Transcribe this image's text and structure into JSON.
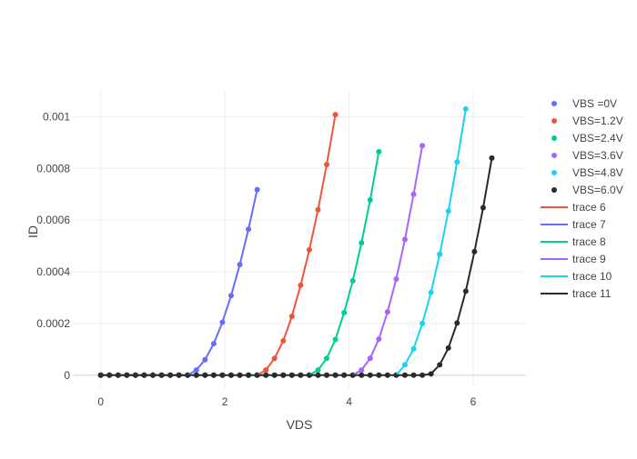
{
  "chart_data": {
    "type": "line",
    "xlabel": "VDS",
    "ylabel": "ID",
    "xlim": [
      -0.45,
      6.85
    ],
    "ylim": [
      -5e-05,
      0.0011
    ],
    "x_ticks": [
      {
        "value": 0,
        "label": "0"
      },
      {
        "value": 2,
        "label": "2"
      },
      {
        "value": 4,
        "label": "4"
      },
      {
        "value": 6,
        "label": "6"
      }
    ],
    "y_ticks": [
      {
        "value": 0,
        "label": "0"
      },
      {
        "value": 0.0002,
        "label": "0.0002"
      },
      {
        "value": 0.0004,
        "label": "0.0004"
      },
      {
        "value": 0.0006,
        "label": "0.0006"
      },
      {
        "value": 0.0008,
        "label": "0.0008"
      },
      {
        "value": 0.001,
        "label": "0.001"
      }
    ],
    "grid": true,
    "legend_position": "right",
    "series": [
      {
        "name": "VBS =0V",
        "mode": "markers",
        "color": "#636efa",
        "x": [
          0,
          0.14,
          0.28,
          0.42,
          0.56,
          0.7,
          0.84,
          0.98,
          1.12,
          1.26,
          1.4,
          1.54,
          1.68,
          1.82,
          1.96,
          2.1,
          2.24,
          2.38,
          2.52
        ],
        "y": [
          0,
          0,
          0,
          0,
          0,
          0,
          0,
          0,
          0,
          0,
          0,
          2e-05,
          6e-05,
          0.000122,
          0.000205,
          0.000308,
          0.000428,
          0.000565,
          0.000718
        ]
      },
      {
        "name": "VBS=1.2V",
        "mode": "markers",
        "color": "#ef553b",
        "x": [
          0,
          0.14,
          0.28,
          0.42,
          0.56,
          0.7,
          0.84,
          0.98,
          1.12,
          1.26,
          1.4,
          1.54,
          1.68,
          1.82,
          1.96,
          2.1,
          2.24,
          2.38,
          2.52,
          2.66,
          2.8,
          2.94,
          3.08,
          3.22,
          3.36,
          3.5,
          3.64,
          3.78
        ],
        "y": [
          0,
          0,
          0,
          0,
          0,
          0,
          0,
          0,
          0,
          0,
          0,
          0,
          0,
          0,
          0,
          0,
          0,
          0,
          0,
          2e-05,
          6.5e-05,
          0.000133,
          0.000228,
          0.000348,
          0.000485,
          0.00064,
          0.000815,
          0.001008
        ]
      },
      {
        "name": "VBS=2.4V",
        "mode": "markers",
        "color": "#00cc96",
        "x": [
          0,
          0.14,
          0.28,
          0.42,
          0.56,
          0.7,
          0.84,
          0.98,
          1.12,
          1.26,
          1.4,
          1.54,
          1.68,
          1.82,
          1.96,
          2.1,
          2.24,
          2.38,
          2.52,
          2.66,
          2.8,
          2.94,
          3.08,
          3.22,
          3.36,
          3.5,
          3.64,
          3.78,
          3.92,
          4.06,
          4.2,
          4.34,
          4.48
        ],
        "y": [
          0,
          0,
          0,
          0,
          0,
          0,
          0,
          0,
          0,
          0,
          0,
          0,
          0,
          0,
          0,
          0,
          0,
          0,
          0,
          0,
          0,
          0,
          0,
          0,
          0,
          2e-05,
          6.5e-05,
          0.000138,
          0.000242,
          0.000365,
          0.000512,
          0.000678,
          0.000865
        ]
      },
      {
        "name": "VBS=3.6V",
        "mode": "markers",
        "color": "#ab63fa",
        "x": [
          0,
          0.14,
          0.28,
          0.42,
          0.56,
          0.7,
          0.84,
          0.98,
          1.12,
          1.26,
          1.4,
          1.54,
          1.68,
          1.82,
          1.96,
          2.1,
          2.24,
          2.38,
          2.52,
          2.66,
          2.8,
          2.94,
          3.08,
          3.22,
          3.36,
          3.5,
          3.64,
          3.78,
          3.92,
          4.06,
          4.2,
          4.34,
          4.48,
          4.62,
          4.76,
          4.9,
          5.04,
          5.18
        ],
        "y": [
          0,
          0,
          0,
          0,
          0,
          0,
          0,
          0,
          0,
          0,
          0,
          0,
          0,
          0,
          0,
          0,
          0,
          0,
          0,
          0,
          0,
          0,
          0,
          0,
          0,
          0,
          0,
          0,
          0,
          0,
          2e-05,
          6.5e-05,
          0.00014,
          0.000245,
          0.000372,
          0.000525,
          0.0007,
          0.000888
        ]
      },
      {
        "name": "VBS=4.8V",
        "mode": "markers",
        "color": "#19d3f3",
        "x": [
          0,
          0.14,
          0.28,
          0.42,
          0.56,
          0.7,
          0.84,
          0.98,
          1.12,
          1.26,
          1.4,
          1.54,
          1.68,
          1.82,
          1.96,
          2.1,
          2.24,
          2.38,
          2.52,
          2.66,
          2.8,
          2.94,
          3.08,
          3.22,
          3.36,
          3.5,
          3.64,
          3.78,
          3.92,
          4.06,
          4.2,
          4.34,
          4.48,
          4.62,
          4.76,
          4.9,
          5.04,
          5.18,
          5.32,
          5.46,
          5.6,
          5.74,
          5.88
        ],
        "y": [
          0,
          0,
          0,
          0,
          0,
          0,
          0,
          0,
          0,
          0,
          0,
          0,
          0,
          0,
          0,
          0,
          0,
          0,
          0,
          0,
          0,
          0,
          0,
          0,
          0,
          0,
          0,
          0,
          0,
          0,
          0,
          0,
          0,
          0,
          0,
          4e-05,
          0.000102,
          0.0002,
          0.00032,
          0.000468,
          0.000635,
          0.000825,
          0.00103
        ]
      },
      {
        "name": "VBS=6.0V",
        "mode": "markers",
        "color": "#2a2a2a",
        "x": [
          0,
          0.14,
          0.28,
          0.42,
          0.56,
          0.7,
          0.84,
          0.98,
          1.12,
          1.26,
          1.4,
          1.54,
          1.68,
          1.82,
          1.96,
          2.1,
          2.24,
          2.38,
          2.52,
          2.66,
          2.8,
          2.94,
          3.08,
          3.22,
          3.36,
          3.5,
          3.64,
          3.78,
          3.92,
          4.06,
          4.2,
          4.34,
          4.48,
          4.62,
          4.76,
          4.9,
          5.04,
          5.18,
          5.32,
          5.46,
          5.6,
          5.74,
          5.88,
          6.02,
          6.16,
          6.3
        ],
        "y": [
          0,
          0,
          0,
          0,
          0,
          0,
          0,
          0,
          0,
          0,
          0,
          0,
          0,
          0,
          0,
          0,
          0,
          0,
          0,
          0,
          0,
          0,
          0,
          0,
          0,
          0,
          0,
          0,
          0,
          0,
          0,
          0,
          0,
          0,
          0,
          0,
          0,
          0,
          5e-06,
          4e-05,
          0.000105,
          0.000202,
          0.000325,
          0.000478,
          0.000648,
          0.00084
        ]
      },
      {
        "name": "trace 6",
        "mode": "lines",
        "color": "#ef553b",
        "x": [
          2.52,
          2.66,
          2.8,
          2.94,
          3.08,
          3.22,
          3.36,
          3.5,
          3.64,
          3.78
        ],
        "y": [
          0,
          2e-05,
          6.5e-05,
          0.000133,
          0.000228,
          0.000348,
          0.000485,
          0.00064,
          0.000815,
          0.001008
        ]
      },
      {
        "name": "trace 7",
        "mode": "lines",
        "color": "#636efa",
        "x": [
          0,
          0.14,
          0.28,
          0.42,
          0.56,
          0.7,
          0.84,
          0.98,
          1.12,
          1.26,
          1.4,
          1.54,
          1.68,
          1.82,
          1.96,
          2.1,
          2.24,
          2.38,
          2.52
        ],
        "y": [
          0,
          0,
          0,
          0,
          0,
          0,
          0,
          0,
          0,
          0,
          0,
          2e-05,
          6e-05,
          0.000122,
          0.000205,
          0.000308,
          0.000428,
          0.000565,
          0.000718
        ]
      },
      {
        "name": "trace 8",
        "mode": "lines",
        "color": "#00cc96",
        "x": [
          3.36,
          3.5,
          3.64,
          3.78,
          3.92,
          4.06,
          4.2,
          4.34,
          4.48
        ],
        "y": [
          0,
          2e-05,
          6.5e-05,
          0.000138,
          0.000242,
          0.000365,
          0.000512,
          0.000678,
          0.000865
        ]
      },
      {
        "name": "trace 9",
        "mode": "lines",
        "color": "#ab63fa",
        "x": [
          4.06,
          4.2,
          4.34,
          4.48,
          4.62,
          4.76,
          4.9,
          5.04,
          5.18
        ],
        "y": [
          0,
          2e-05,
          6.5e-05,
          0.00014,
          0.000245,
          0.000372,
          0.000525,
          0.0007,
          0.000888
        ]
      },
      {
        "name": "trace 10",
        "mode": "lines",
        "color": "#19d3f3",
        "x": [
          4.76,
          4.9,
          5.04,
          5.18,
          5.32,
          5.46,
          5.6,
          5.74,
          5.88
        ],
        "y": [
          0,
          4e-05,
          0.000102,
          0.0002,
          0.00032,
          0.000468,
          0.000635,
          0.000825,
          0.00103
        ]
      },
      {
        "name": "trace 11",
        "mode": "lines",
        "color": "#2a2a2a",
        "x": [
          0,
          0.14,
          0.28,
          0.42,
          0.56,
          0.7,
          0.84,
          0.98,
          1.12,
          1.26,
          1.4,
          1.54,
          1.68,
          1.82,
          1.96,
          2.1,
          2.24,
          2.38,
          2.52,
          2.66,
          2.8,
          2.94,
          3.08,
          3.22,
          3.36,
          3.5,
          3.64,
          3.78,
          3.92,
          4.06,
          4.2,
          4.34,
          4.48,
          4.62,
          4.76,
          4.9,
          5.04,
          5.18,
          5.32,
          5.46,
          5.6,
          5.74,
          5.88,
          6.02,
          6.16,
          6.3
        ],
        "y": [
          0,
          0,
          0,
          0,
          0,
          0,
          0,
          0,
          0,
          0,
          0,
          0,
          0,
          0,
          0,
          0,
          0,
          0,
          0,
          0,
          0,
          0,
          0,
          0,
          0,
          0,
          0,
          0,
          0,
          0,
          0,
          0,
          0,
          0,
          0,
          0,
          0,
          0,
          5e-06,
          4e-05,
          0.000105,
          0.000202,
          0.000325,
          0.000478,
          0.000648,
          0.00084
        ]
      }
    ]
  }
}
